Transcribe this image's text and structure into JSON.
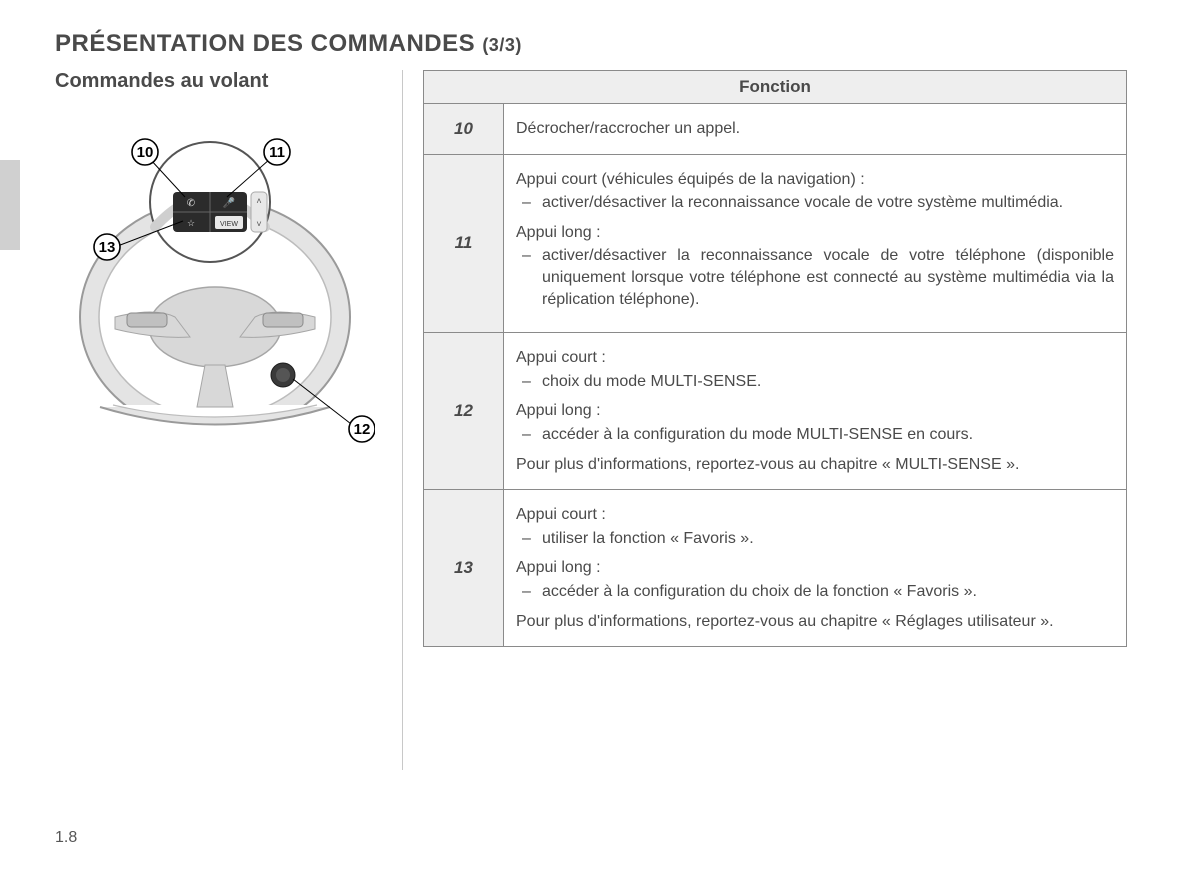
{
  "title_main": "PRÉSENTATION DES COMMANDES",
  "title_suffix": "(3/3)",
  "subtitle": "Commandes au volant",
  "table": {
    "header": "Fonction",
    "rows": [
      {
        "num": "10",
        "simple": "Décrocher/raccrocher un appel."
      },
      {
        "num": "11",
        "blocks": [
          {
            "lead": "Appui court (véhicules équipés de la navigation) :",
            "items": [
              "activer/désactiver la reconnaissance vocale de votre système multi­média."
            ]
          },
          {
            "lead": "Appui long :",
            "items": [
              "activer/désactiver la reconnaissance vocale de votre téléphone (dis­ponible uniquement lorsque votre téléphone est connecté au système multimédia via la réplication téléphone)."
            ]
          }
        ]
      },
      {
        "num": "12",
        "blocks": [
          {
            "lead": "Appui court :",
            "items": [
              "choix du mode MULTI-SENSE."
            ]
          },
          {
            "lead": "Appui long :",
            "items": [
              "accéder à la configuration du mode MULTI-SENSE en cours."
            ]
          }
        ],
        "footer": "Pour plus d'informations, reportez-vous au chapitre « MULTI-SENSE »."
      },
      {
        "num": "13",
        "blocks": [
          {
            "lead": "Appui court :",
            "items": [
              "utiliser la fonction « Favoris »."
            ]
          },
          {
            "lead": "Appui long :",
            "items": [
              "accéder à la configuration du choix de la fonction « Favoris »."
            ]
          }
        ],
        "footer": "Pour plus d'informations, reportez-vous au chapitre « Réglages utilisa­teur »."
      }
    ]
  },
  "callouts": {
    "c10": "10",
    "c11": "11",
    "c12": "12",
    "c13": "13"
  },
  "page_number": "1.8",
  "colors": {
    "text": "#4a4a4a",
    "table_border": "#8a8a8a",
    "header_bg": "#eeeeee",
    "side_tab": "#d0d0d0",
    "wheel_light": "#e2e2e2",
    "wheel_mid": "#c8c8c8",
    "wheel_dark": "#9a9a9a",
    "wheel_black": "#2b2b2b",
    "callout_circle": "#000000"
  }
}
